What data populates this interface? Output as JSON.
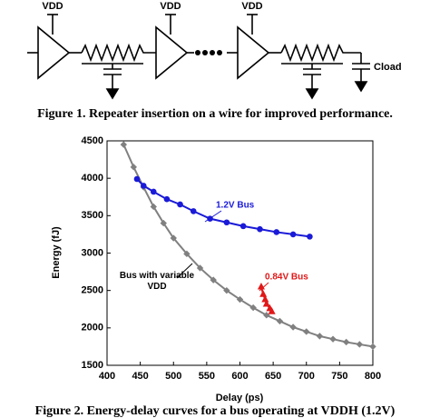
{
  "figure1": {
    "vdd_labels": [
      "VDD",
      "VDD",
      "VDD"
    ],
    "cload": "Cload",
    "caption": "Figure 1. Repeater insertion on a wire for improved performance."
  },
  "chart_data": {
    "type": "line",
    "x_label": "Delay (ps)",
    "y_label": "Energy (fJ)",
    "xlim": [
      400,
      800
    ],
    "xticks": [
      400,
      450,
      500,
      550,
      600,
      650,
      700,
      750,
      800
    ],
    "ylim": [
      1500,
      4500
    ],
    "yticks": [
      1500,
      2000,
      2500,
      3000,
      3500,
      4000,
      4500
    ],
    "series": [
      {
        "name": "Bus with variable VDD",
        "color": "#808080",
        "marker": "diamond",
        "x": [
          425,
          440,
          455,
          470,
          485,
          500,
          520,
          540,
          560,
          580,
          600,
          620,
          640,
          660,
          680,
          700,
          720,
          740,
          760,
          780,
          800
        ],
        "values": [
          4450,
          4150,
          3880,
          3620,
          3400,
          3200,
          2990,
          2800,
          2640,
          2500,
          2380,
          2270,
          2170,
          2090,
          2010,
          1950,
          1890,
          1850,
          1810,
          1780,
          1750
        ]
      },
      {
        "name": "1.2V Bus",
        "color": "#1a1ad8",
        "marker": "circle",
        "x": [
          445,
          455,
          470,
          490,
          510,
          530,
          555,
          580,
          605,
          630,
          655,
          680,
          705
        ],
        "values": [
          3990,
          3900,
          3820,
          3720,
          3650,
          3560,
          3460,
          3410,
          3360,
          3320,
          3280,
          3250,
          3220
        ]
      },
      {
        "name": "0.84V Bus",
        "color": "#e01818",
        "marker": "triangle",
        "x": [
          632,
          635,
          638,
          640,
          645,
          648
        ],
        "values": [
          2550,
          2450,
          2380,
          2320,
          2260,
          2220
        ]
      }
    ],
    "caption": "Figure 2. Energy-delay curves for a bus operating at VDDH (1.2V)"
  }
}
